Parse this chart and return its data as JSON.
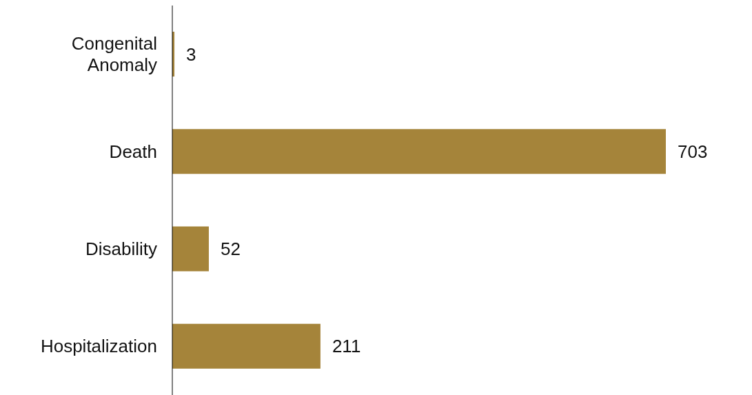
{
  "chart_data": {
    "type": "bar",
    "orientation": "horizontal",
    "categories": [
      "Congenital Anomaly",
      "Death",
      "Disability",
      "Hospitalization"
    ],
    "values": [
      3,
      703,
      52,
      211
    ],
    "color": "#a5843a",
    "data_labels": true
  }
}
